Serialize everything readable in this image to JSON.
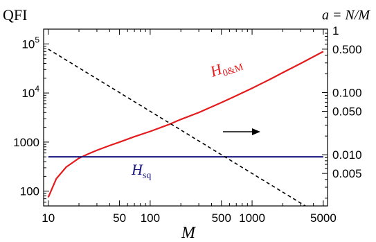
{
  "chart_data": {
    "type": "line",
    "title": "",
    "top_left_label": "QFI",
    "top_right_label": "a = N/M",
    "xlabel": "M",
    "x_scale": "log",
    "xlim": [
      9,
      5500
    ],
    "x_ticks": [
      10,
      50,
      100,
      500,
      1000,
      5000
    ],
    "x_tick_labels": [
      "10",
      "50",
      "100",
      "500",
      "1000",
      "5000"
    ],
    "y_left": {
      "scale": "log",
      "ylim": [
        50,
        200000
      ],
      "ticks": [
        100,
        1000,
        10000,
        100000
      ],
      "tick_labels": [
        {
          "base": "100",
          "exp": ""
        },
        {
          "base": "1000",
          "exp": ""
        },
        {
          "base": "10",
          "exp": "4"
        },
        {
          "base": "10",
          "exp": "5"
        }
      ]
    },
    "y_right": {
      "scale": "log",
      "ylim": [
        0.0015,
        1.05
      ],
      "ticks": [
        1,
        0.5,
        0.1,
        0.05,
        0.01,
        0.005
      ],
      "tick_labels": [
        "1",
        "0.500",
        "0.100",
        "0.050",
        "0.010",
        "0.005"
      ]
    },
    "series": [
      {
        "name": "H_{0&M}",
        "label_main": "H",
        "label_sub": "0&M",
        "axis": "left",
        "color": "#e41a1c",
        "style": "solid",
        "x": [
          10,
          12,
          15,
          20,
          25,
          30,
          40,
          50,
          70,
          100,
          150,
          200,
          300,
          500,
          700,
          1000,
          1500,
          2000,
          3000,
          5000
        ],
        "y": [
          75,
          180,
          310,
          470,
          580,
          680,
          850,
          1000,
          1290,
          1650,
          2250,
          2900,
          4000,
          6400,
          8800,
          12500,
          19000,
          26000,
          40000,
          70000
        ]
      },
      {
        "name": "H_{sq}",
        "label_main": "H",
        "label_sub": "sq",
        "axis": "left",
        "color": "#1a1a7e",
        "style": "solid",
        "x": [
          10,
          5000
        ],
        "y": [
          500,
          500
        ]
      },
      {
        "name": "a = N/M",
        "axis": "right",
        "color": "#000000",
        "style": "dashed",
        "x": [
          10,
          5000
        ],
        "y": [
          0.5,
          0.001
        ]
      }
    ],
    "annotations": [
      {
        "type": "arrow",
        "direction": "right"
      }
    ],
    "grid": false,
    "legend": "none"
  }
}
